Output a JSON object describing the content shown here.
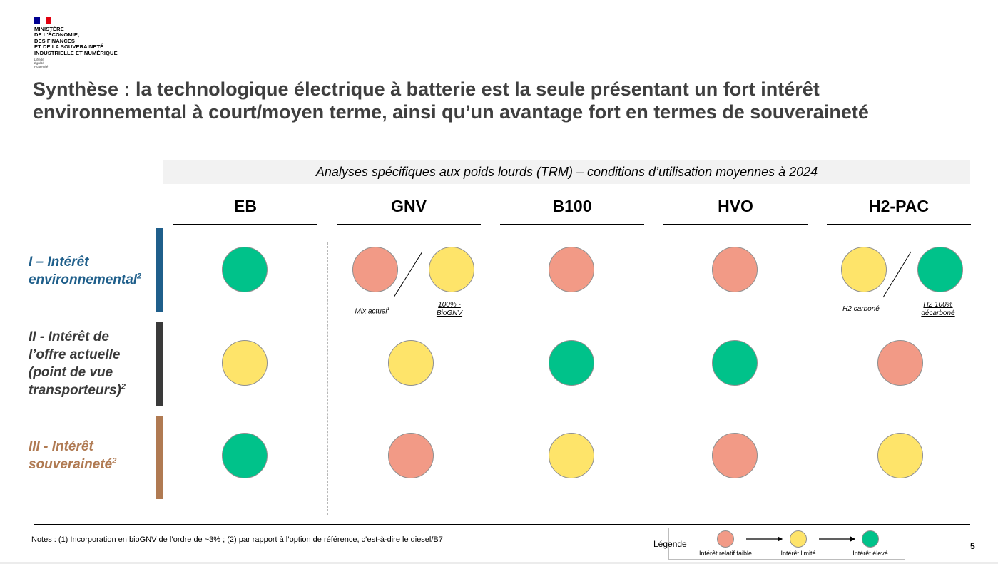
{
  "logo": {
    "flag_colors": [
      "#000091",
      "#ffffff",
      "#e1000f"
    ],
    "name_lines": [
      "MINISTÈRE",
      "DE L'ÉCONOMIE,",
      "DES FINANCES",
      "ET DE LA SOUVERAINETÉ",
      "INDUSTRIELLE ET NUMÉRIQUE"
    ],
    "motto_lines": [
      "Liberté",
      "Égalité",
      "Fraternité"
    ]
  },
  "title_lines": [
    "Synthèse : la technologique électrique à batterie est la seule présentant un fort intérêt",
    "environnemental à court/moyen terme, ainsi qu’un avantage fort en termes de souveraineté"
  ],
  "subtitle": "Analyses spécifiques aux poids lourds (TRM) – conditions d’utilisation moyennes à 2024",
  "columns": [
    "EB",
    "GNV",
    "B100",
    "HVO",
    "H2-PAC"
  ],
  "rows": [
    {
      "label_lines": [
        "I – Intérêt",
        "environnemental"
      ],
      "sup": "2",
      "color": "#1f5f8b"
    },
    {
      "label_lines": [
        "II - Intérêt de",
        "l’offre actuelle",
        "(point de vue",
        "transporteurs)"
      ],
      "sup": "2",
      "color": "#3a3a3a"
    },
    {
      "label_lines": [
        "III - Intérêt",
        "souveraineté"
      ],
      "sup": "2",
      "color": "#b07a52"
    }
  ],
  "level_colors": {
    "faible": "#f29a86",
    "limite": "#fee46a",
    "eleve": "#00c28a"
  },
  "grid": [
    [
      "eleve",
      "split",
      "faible",
      "faible",
      "split"
    ],
    [
      "limite",
      "limite",
      "eleve",
      "eleve",
      "faible"
    ],
    [
      "eleve",
      "faible",
      "limite",
      "faible",
      "limite"
    ]
  ],
  "splits": {
    "gnv": {
      "left_level": "faible",
      "right_level": "limite",
      "left_label": "Mix actuel",
      "left_sup": "1",
      "right_label_lines": [
        "100% -",
        "BioGNV"
      ]
    },
    "h2": {
      "left_level": "limite",
      "right_level": "eleve",
      "left_label": "H2 carboné",
      "right_label_lines": [
        "H2 100%",
        "décarboné"
      ]
    }
  },
  "notes": "Notes : (1) Incorporation en bioGNV de l’ordre de ~3% ; (2) par rapport à l’option de référence, c’est-à-dire le diesel/B7",
  "legend": {
    "title": "Légende",
    "items": [
      {
        "level": "faible",
        "label": "Intérêt relatif faible"
      },
      {
        "level": "limite",
        "label": "Intérêt limité"
      },
      {
        "level": "eleve",
        "label": "Intérêt élevé"
      }
    ]
  },
  "page_number": "5"
}
